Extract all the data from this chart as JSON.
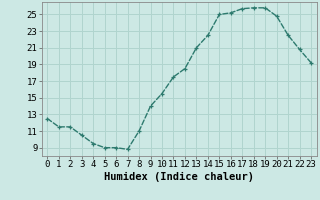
{
  "x": [
    0,
    1,
    2,
    3,
    4,
    5,
    6,
    7,
    8,
    9,
    10,
    11,
    12,
    13,
    14,
    15,
    16,
    17,
    18,
    19,
    20,
    21,
    22,
    23
  ],
  "y": [
    12.5,
    11.5,
    11.5,
    10.5,
    9.5,
    9.0,
    9.0,
    8.8,
    11.0,
    14.0,
    15.5,
    17.5,
    18.5,
    21.0,
    22.5,
    25.0,
    25.2,
    25.7,
    25.8,
    25.8,
    24.8,
    22.5,
    20.8,
    19.2
  ],
  "line_color": "#2d7a6e",
  "marker": "+",
  "bg_color": "#cce8e4",
  "grid_color": "#b0d4ce",
  "xlabel": "Humidex (Indice chaleur)",
  "xlim": [
    -0.5,
    23.5
  ],
  "ylim": [
    8.0,
    26.5
  ],
  "yticks": [
    9,
    11,
    13,
    15,
    17,
    19,
    21,
    23,
    25
  ],
  "xticks": [
    0,
    1,
    2,
    3,
    4,
    5,
    6,
    7,
    8,
    9,
    10,
    11,
    12,
    13,
    14,
    15,
    16,
    17,
    18,
    19,
    20,
    21,
    22,
    23
  ],
  "xlabel_fontsize": 7.5,
  "tick_fontsize": 6.5,
  "linewidth": 1.0,
  "markersize": 3.5,
  "markeredgewidth": 0.9
}
